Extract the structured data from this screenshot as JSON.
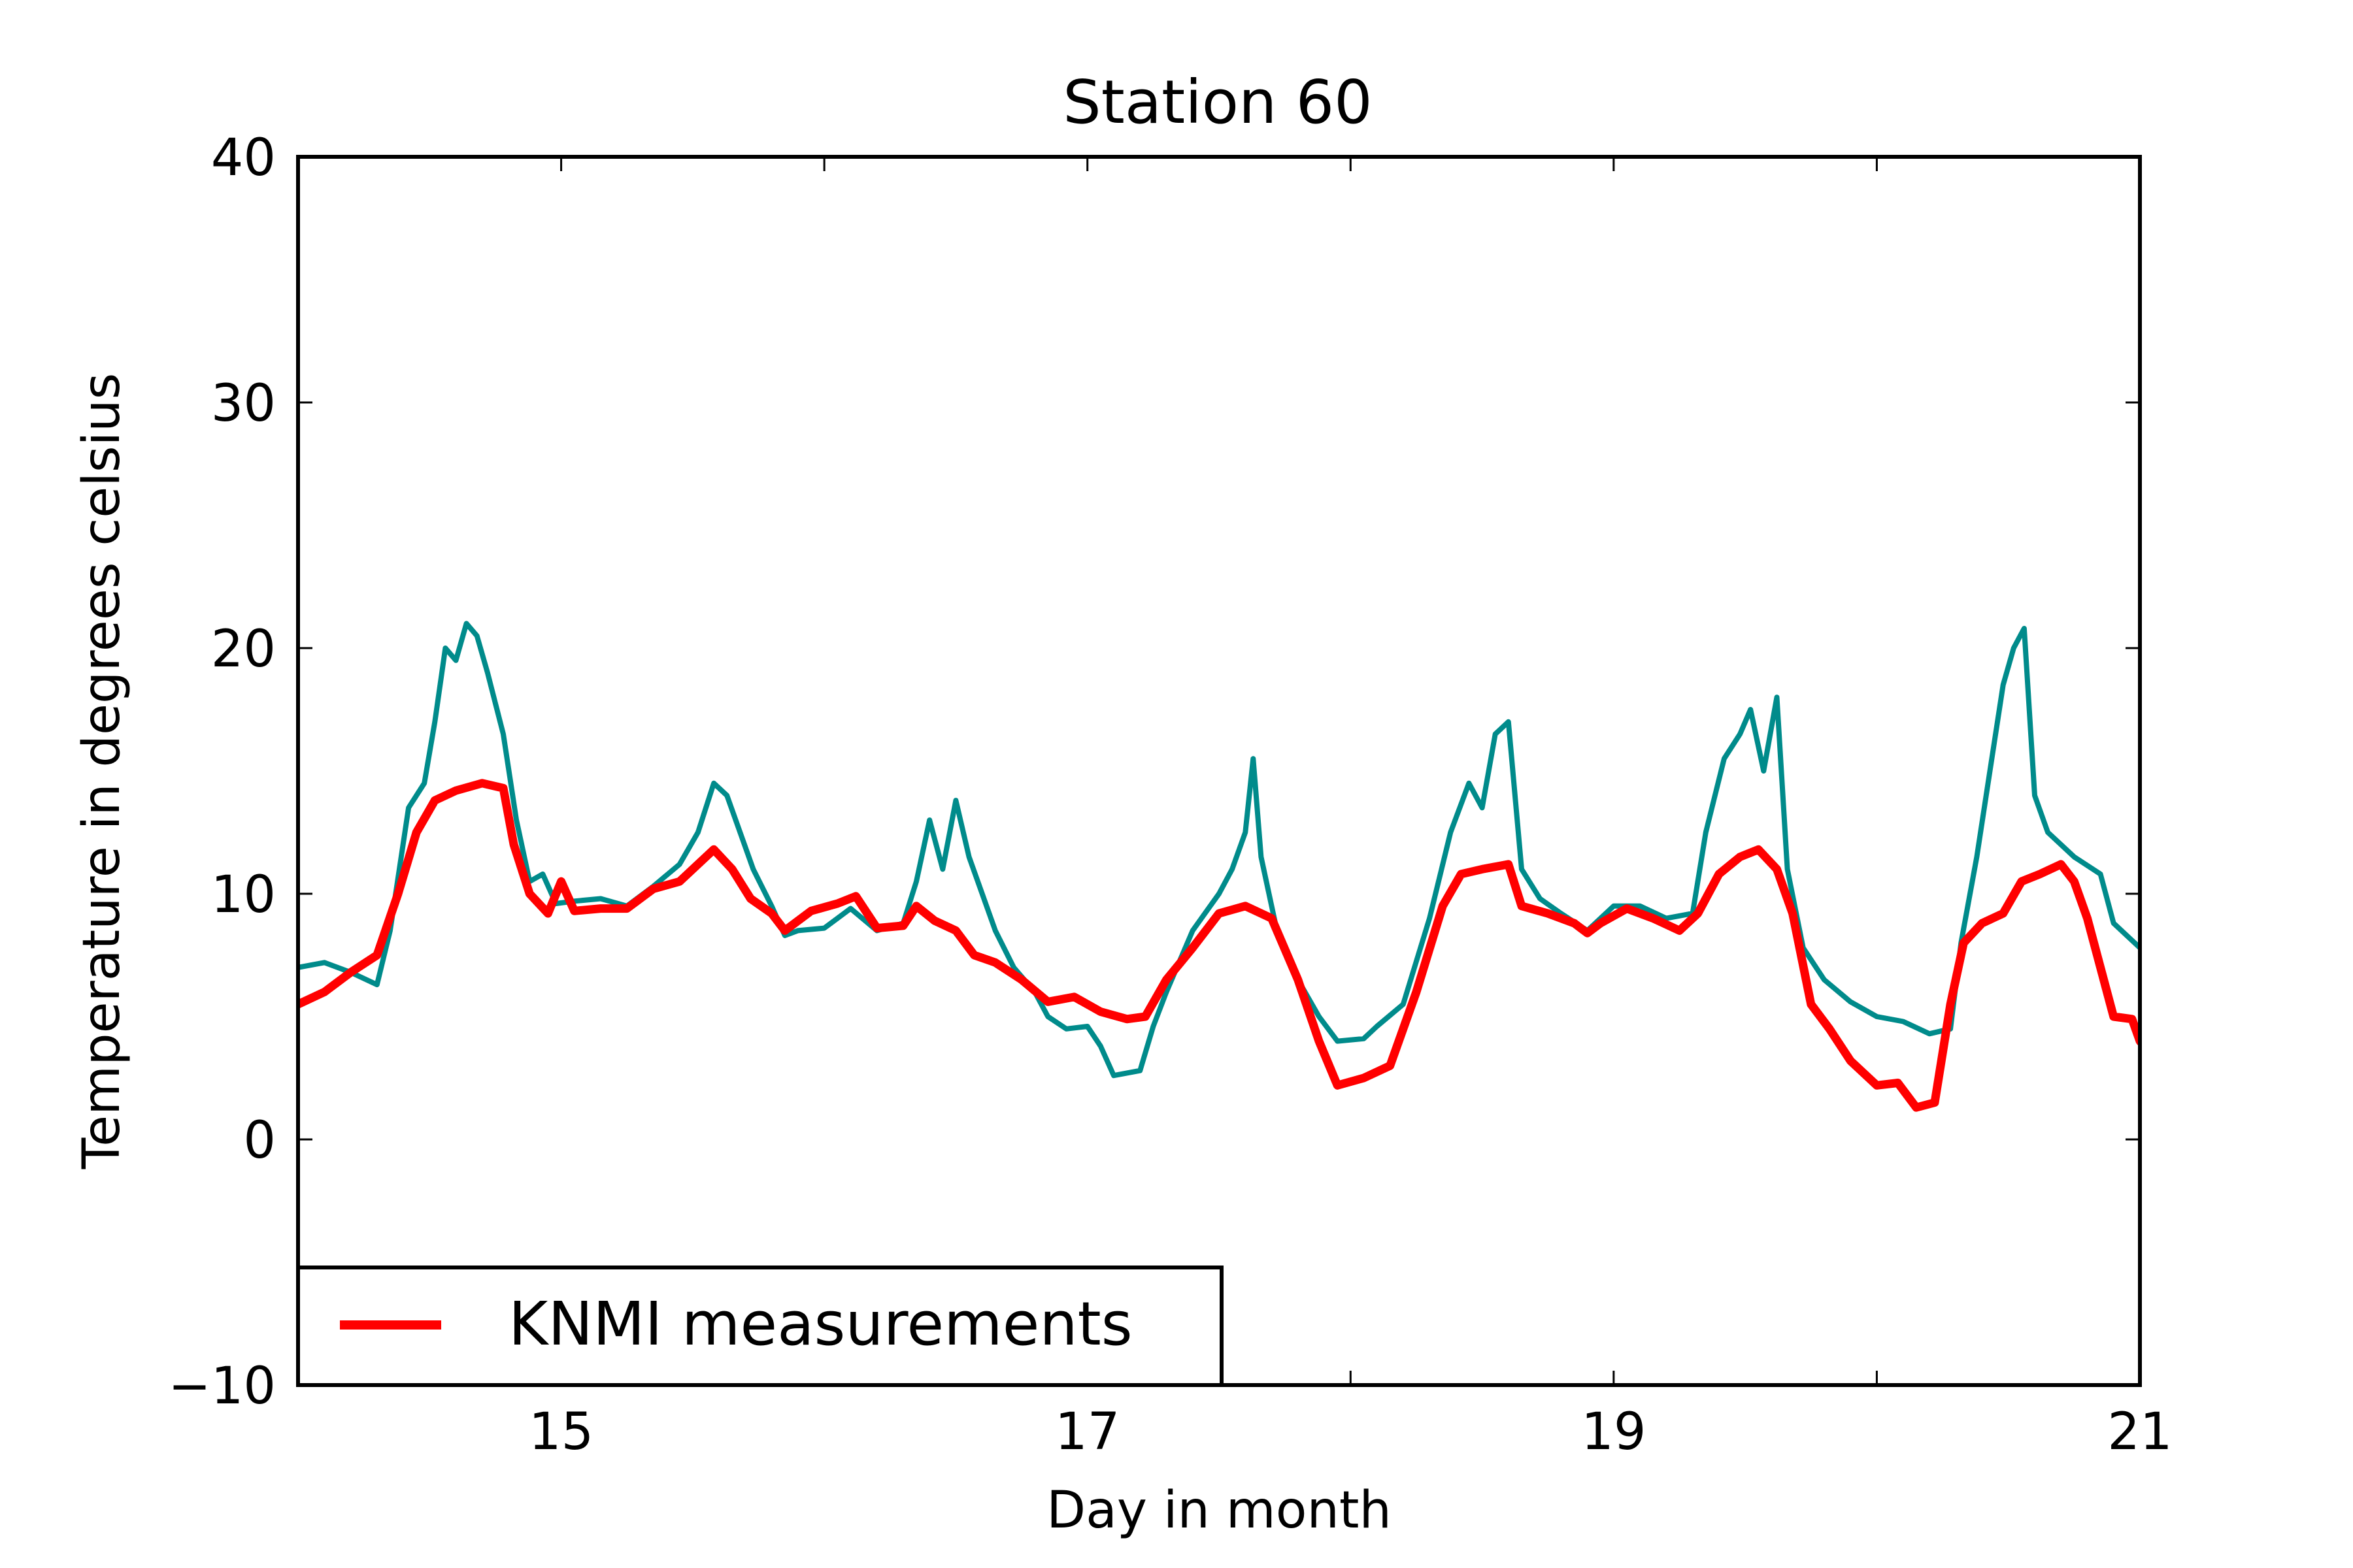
{
  "chart_data": {
    "type": "line",
    "title": "Station 60",
    "xlabel": "Day in month",
    "ylabel": "Temperature in degrees celsius",
    "xlim": [
      14,
      21
    ],
    "ylim": [
      -10,
      40
    ],
    "xticks": [
      15,
      17,
      19,
      21
    ],
    "xtick_labels": [
      "15",
      "17",
      "19",
      "21"
    ],
    "yticks": [
      -10,
      0,
      10,
      20,
      30,
      40
    ],
    "ytick_labels": [
      "−10",
      "0",
      "10",
      "20",
      "30",
      "40"
    ],
    "grid": false,
    "legend": {
      "position": "lower-left",
      "entries": [
        "KNMI measurements"
      ]
    },
    "series": [
      {
        "color": "#008b8b",
        "points": [
          [
            14.0,
            7.0
          ],
          [
            14.1,
            7.2
          ],
          [
            14.2,
            6.8
          ],
          [
            14.3,
            6.3
          ],
          [
            14.35,
            8.5
          ],
          [
            14.42,
            13.5
          ],
          [
            14.48,
            14.5
          ],
          [
            14.52,
            17.0
          ],
          [
            14.56,
            20.0
          ],
          [
            14.6,
            19.5
          ],
          [
            14.64,
            21.0
          ],
          [
            14.68,
            20.5
          ],
          [
            14.72,
            19.0
          ],
          [
            14.78,
            16.5
          ],
          [
            14.83,
            13.0
          ],
          [
            14.88,
            10.5
          ],
          [
            14.93,
            10.8
          ],
          [
            14.98,
            9.6
          ],
          [
            15.05,
            9.7
          ],
          [
            15.15,
            9.8
          ],
          [
            15.25,
            9.5
          ],
          [
            15.35,
            10.3
          ],
          [
            15.45,
            11.2
          ],
          [
            15.52,
            12.5
          ],
          [
            15.58,
            14.5
          ],
          [
            15.63,
            14.0
          ],
          [
            15.68,
            12.5
          ],
          [
            15.73,
            11.0
          ],
          [
            15.8,
            9.5
          ],
          [
            15.85,
            8.3
          ],
          [
            15.9,
            8.5
          ],
          [
            16.0,
            8.6
          ],
          [
            16.1,
            9.4
          ],
          [
            16.2,
            8.5
          ],
          [
            16.3,
            8.8
          ],
          [
            16.35,
            10.5
          ],
          [
            16.4,
            13.0
          ],
          [
            16.45,
            11.0
          ],
          [
            16.5,
            13.8
          ],
          [
            16.55,
            11.5
          ],
          [
            16.6,
            10.0
          ],
          [
            16.65,
            8.5
          ],
          [
            16.72,
            7.0
          ],
          [
            16.8,
            6.0
          ],
          [
            16.85,
            5.0
          ],
          [
            16.92,
            4.5
          ],
          [
            17.0,
            4.6
          ],
          [
            17.05,
            3.8
          ],
          [
            17.1,
            2.6
          ],
          [
            17.2,
            2.8
          ],
          [
            17.25,
            4.6
          ],
          [
            17.3,
            6.0
          ],
          [
            17.4,
            8.5
          ],
          [
            17.5,
            10.0
          ],
          [
            17.55,
            11.0
          ],
          [
            17.6,
            12.5
          ],
          [
            17.63,
            15.5
          ],
          [
            17.66,
            11.5
          ],
          [
            17.72,
            8.5
          ],
          [
            17.8,
            6.5
          ],
          [
            17.88,
            5.0
          ],
          [
            17.95,
            4.0
          ],
          [
            18.05,
            4.1
          ],
          [
            18.1,
            4.6
          ],
          [
            18.2,
            5.5
          ],
          [
            18.3,
            9.0
          ],
          [
            18.38,
            12.5
          ],
          [
            18.45,
            14.5
          ],
          [
            18.5,
            13.5
          ],
          [
            18.55,
            16.5
          ],
          [
            18.6,
            17.0
          ],
          [
            18.65,
            11.0
          ],
          [
            18.72,
            9.8
          ],
          [
            18.8,
            9.2
          ],
          [
            18.9,
            8.5
          ],
          [
            19.0,
            9.5
          ],
          [
            19.1,
            9.5
          ],
          [
            19.2,
            9.0
          ],
          [
            19.3,
            9.2
          ],
          [
            19.35,
            12.5
          ],
          [
            19.42,
            15.5
          ],
          [
            19.48,
            16.5
          ],
          [
            19.52,
            17.5
          ],
          [
            19.57,
            15.0
          ],
          [
            19.62,
            18.0
          ],
          [
            19.66,
            11.0
          ],
          [
            19.72,
            7.8
          ],
          [
            19.8,
            6.5
          ],
          [
            19.9,
            5.6
          ],
          [
            20.0,
            5.0
          ],
          [
            20.1,
            4.8
          ],
          [
            20.2,
            4.3
          ],
          [
            20.28,
            4.5
          ],
          [
            20.32,
            8.0
          ],
          [
            20.38,
            11.5
          ],
          [
            20.43,
            15.0
          ],
          [
            20.48,
            18.5
          ],
          [
            20.52,
            20.0
          ],
          [
            20.56,
            20.8
          ],
          [
            20.6,
            14.0
          ],
          [
            20.65,
            12.5
          ],
          [
            20.75,
            11.5
          ],
          [
            20.85,
            10.8
          ],
          [
            20.9,
            8.8
          ],
          [
            21.0,
            7.8
          ],
          [
            21.05,
            7.0
          ]
        ]
      },
      {
        "name": "KNMI measurements",
        "color": "#ff0000",
        "points": [
          [
            14.0,
            5.5
          ],
          [
            14.1,
            6.0
          ],
          [
            14.2,
            6.8
          ],
          [
            14.3,
            7.5
          ],
          [
            14.38,
            10.0
          ],
          [
            14.45,
            12.5
          ],
          [
            14.52,
            13.8
          ],
          [
            14.6,
            14.2
          ],
          [
            14.7,
            14.5
          ],
          [
            14.78,
            14.3
          ],
          [
            14.82,
            12.0
          ],
          [
            14.88,
            10.0
          ],
          [
            14.95,
            9.2
          ],
          [
            15.0,
            10.5
          ],
          [
            15.05,
            9.3
          ],
          [
            15.15,
            9.4
          ],
          [
            15.25,
            9.4
          ],
          [
            15.35,
            10.2
          ],
          [
            15.45,
            10.5
          ],
          [
            15.52,
            11.2
          ],
          [
            15.58,
            11.8
          ],
          [
            15.65,
            11.0
          ],
          [
            15.72,
            9.8
          ],
          [
            15.8,
            9.2
          ],
          [
            15.85,
            8.5
          ],
          [
            15.95,
            9.3
          ],
          [
            16.05,
            9.6
          ],
          [
            16.12,
            9.9
          ],
          [
            16.2,
            8.6
          ],
          [
            16.3,
            8.7
          ],
          [
            16.35,
            9.5
          ],
          [
            16.42,
            8.9
          ],
          [
            16.5,
            8.5
          ],
          [
            16.57,
            7.5
          ],
          [
            16.65,
            7.2
          ],
          [
            16.75,
            6.5
          ],
          [
            16.85,
            5.6
          ],
          [
            16.95,
            5.8
          ],
          [
            17.05,
            5.2
          ],
          [
            17.15,
            4.9
          ],
          [
            17.22,
            5.0
          ],
          [
            17.3,
            6.5
          ],
          [
            17.4,
            7.8
          ],
          [
            17.5,
            9.2
          ],
          [
            17.6,
            9.5
          ],
          [
            17.7,
            9.0
          ],
          [
            17.8,
            6.5
          ],
          [
            17.88,
            4.0
          ],
          [
            17.95,
            2.2
          ],
          [
            18.05,
            2.5
          ],
          [
            18.15,
            3.0
          ],
          [
            18.25,
            6.0
          ],
          [
            18.35,
            9.5
          ],
          [
            18.42,
            10.8
          ],
          [
            18.5,
            11.0
          ],
          [
            18.6,
            11.2
          ],
          [
            18.65,
            9.5
          ],
          [
            18.75,
            9.2
          ],
          [
            18.85,
            8.8
          ],
          [
            18.9,
            8.4
          ],
          [
            18.95,
            8.8
          ],
          [
            19.05,
            9.4
          ],
          [
            19.15,
            9.0
          ],
          [
            19.25,
            8.5
          ],
          [
            19.32,
            9.2
          ],
          [
            19.4,
            10.8
          ],
          [
            19.48,
            11.5
          ],
          [
            19.55,
            11.8
          ],
          [
            19.62,
            11.0
          ],
          [
            19.68,
            9.2
          ],
          [
            19.75,
            5.5
          ],
          [
            19.82,
            4.5
          ],
          [
            19.9,
            3.2
          ],
          [
            20.0,
            2.2
          ],
          [
            20.08,
            2.3
          ],
          [
            20.15,
            1.3
          ],
          [
            20.22,
            1.5
          ],
          [
            20.28,
            5.5
          ],
          [
            20.33,
            8.0
          ],
          [
            20.4,
            8.8
          ],
          [
            20.48,
            9.2
          ],
          [
            20.55,
            10.5
          ],
          [
            20.62,
            10.8
          ],
          [
            20.7,
            11.2
          ],
          [
            20.75,
            10.5
          ],
          [
            20.8,
            9.0
          ],
          [
            20.85,
            7.0
          ],
          [
            20.9,
            5.0
          ],
          [
            20.97,
            4.9
          ],
          [
            21.0,
            4.0
          ],
          [
            21.05,
            3.4
          ]
        ]
      }
    ]
  }
}
